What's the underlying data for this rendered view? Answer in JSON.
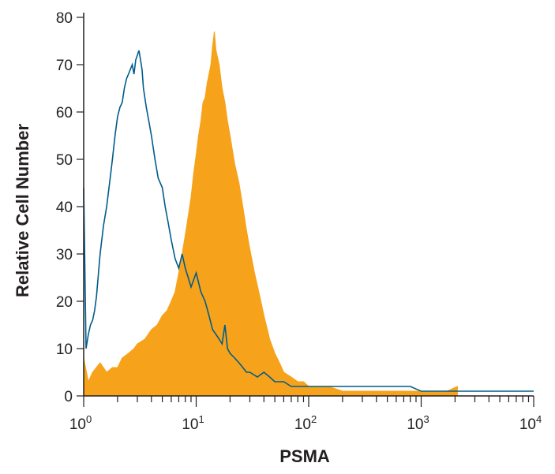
{
  "chart_data": {
    "type": "area",
    "xlabel": "PSMA",
    "ylabel": "Relative Cell Number",
    "x_scale": "log",
    "xlim": [
      1,
      10000
    ],
    "ylim": [
      0,
      80
    ],
    "x_ticks": [
      {
        "base": "10",
        "exp": "0",
        "value": 1
      },
      {
        "base": "10",
        "exp": "1",
        "value": 10
      },
      {
        "base": "10",
        "exp": "2",
        "value": 100
      },
      {
        "base": "10",
        "exp": "3",
        "value": 1000
      },
      {
        "base": "10",
        "exp": "4",
        "value": 10000
      }
    ],
    "y_ticks": [
      "0",
      "10",
      "20",
      "30",
      "40",
      "50",
      "60",
      "70",
      "80"
    ],
    "legend": "none",
    "grid": false,
    "series": [
      {
        "style": "filled",
        "color": "#f7a21b",
        "points": [
          [
            1.0,
            8
          ],
          [
            1.1,
            3
          ],
          [
            1.2,
            5
          ],
          [
            1.4,
            7
          ],
          [
            1.6,
            5
          ],
          [
            1.8,
            6
          ],
          [
            2.0,
            6
          ],
          [
            2.2,
            8
          ],
          [
            2.5,
            9
          ],
          [
            2.8,
            10
          ],
          [
            3.0,
            11
          ],
          [
            3.5,
            12
          ],
          [
            4.0,
            14
          ],
          [
            4.5,
            15
          ],
          [
            5.0,
            17
          ],
          [
            5.5,
            18
          ],
          [
            6.0,
            20
          ],
          [
            6.5,
            22
          ],
          [
            7.0,
            26
          ],
          [
            7.5,
            30
          ],
          [
            8.0,
            34
          ],
          [
            8.5,
            38
          ],
          [
            9.0,
            42
          ],
          [
            9.5,
            47
          ],
          [
            10.0,
            51
          ],
          [
            10.5,
            55
          ],
          [
            11.0,
            58
          ],
          [
            11.5,
            62
          ],
          [
            12.0,
            63
          ],
          [
            12.5,
            66
          ],
          [
            13.0,
            68
          ],
          [
            13.5,
            70
          ],
          [
            14.0,
            74
          ],
          [
            14.5,
            77
          ],
          [
            15.0,
            73
          ],
          [
            16.0,
            70
          ],
          [
            17.0,
            65
          ],
          [
            18.0,
            62
          ],
          [
            19.0,
            58
          ],
          [
            20.0,
            55
          ],
          [
            22.0,
            49
          ],
          [
            24.0,
            45
          ],
          [
            26.0,
            40
          ],
          [
            28.0,
            35
          ],
          [
            30.0,
            31
          ],
          [
            33.0,
            26
          ],
          [
            36.0,
            22
          ],
          [
            40.0,
            17
          ],
          [
            45.0,
            12
          ],
          [
            50.0,
            9
          ],
          [
            55.0,
            7
          ],
          [
            60.0,
            5
          ],
          [
            70.0,
            4
          ],
          [
            80.0,
            3
          ],
          [
            90.0,
            3
          ],
          [
            100.0,
            2
          ],
          [
            120.0,
            2
          ],
          [
            150.0,
            2
          ],
          [
            200.0,
            1
          ],
          [
            300.0,
            1
          ],
          [
            500.0,
            1
          ],
          [
            800.0,
            1
          ],
          [
            1200.0,
            1
          ],
          [
            1700.0,
            1
          ],
          [
            2100.0,
            2
          ]
        ]
      },
      {
        "style": "outline",
        "color": "#005c8c",
        "points": [
          [
            1.0,
            44
          ],
          [
            1.05,
            10
          ],
          [
            1.1,
            13
          ],
          [
            1.15,
            15
          ],
          [
            1.2,
            16
          ],
          [
            1.25,
            18
          ],
          [
            1.3,
            21
          ],
          [
            1.4,
            30
          ],
          [
            1.5,
            36
          ],
          [
            1.6,
            40
          ],
          [
            1.7,
            45
          ],
          [
            1.8,
            50
          ],
          [
            1.9,
            55
          ],
          [
            2.0,
            59
          ],
          [
            2.1,
            61
          ],
          [
            2.2,
            62
          ],
          [
            2.3,
            65
          ],
          [
            2.4,
            67
          ],
          [
            2.5,
            68
          ],
          [
            2.6,
            69
          ],
          [
            2.7,
            70
          ],
          [
            2.8,
            68
          ],
          [
            2.9,
            71
          ],
          [
            3.0,
            72
          ],
          [
            3.1,
            73
          ],
          [
            3.2,
            71
          ],
          [
            3.3,
            69
          ],
          [
            3.4,
            65
          ],
          [
            3.6,
            61
          ],
          [
            3.8,
            58
          ],
          [
            4.0,
            55
          ],
          [
            4.3,
            50
          ],
          [
            4.6,
            46
          ],
          [
            5.0,
            44
          ],
          [
            5.3,
            40
          ],
          [
            5.6,
            37
          ],
          [
            6.0,
            33
          ],
          [
            6.5,
            29
          ],
          [
            7.0,
            27
          ],
          [
            7.5,
            30
          ],
          [
            8.0,
            27
          ],
          [
            8.5,
            25
          ],
          [
            9.0,
            23
          ],
          [
            10.0,
            26
          ],
          [
            11.0,
            22
          ],
          [
            12.0,
            20
          ],
          [
            13.0,
            17
          ],
          [
            14.0,
            14
          ],
          [
            15.0,
            13
          ],
          [
            16.0,
            12
          ],
          [
            17.0,
            11
          ],
          [
            18.0,
            15
          ],
          [
            19.0,
            10
          ],
          [
            20.0,
            9
          ],
          [
            22.0,
            8
          ],
          [
            24.0,
            7
          ],
          [
            26.0,
            6
          ],
          [
            28.0,
            5
          ],
          [
            30.0,
            5
          ],
          [
            35.0,
            4
          ],
          [
            40.0,
            5
          ],
          [
            45.0,
            4
          ],
          [
            50.0,
            3
          ],
          [
            60.0,
            3
          ],
          [
            70.0,
            2
          ],
          [
            80.0,
            2
          ],
          [
            100.0,
            2
          ],
          [
            150.0,
            2
          ],
          [
            200.0,
            2
          ],
          [
            300.0,
            2
          ],
          [
            500.0,
            2
          ],
          [
            800.0,
            2
          ],
          [
            1000.0,
            1
          ],
          [
            2000.0,
            1
          ],
          [
            5000.0,
            1
          ],
          [
            10000.0,
            1
          ]
        ]
      }
    ]
  }
}
